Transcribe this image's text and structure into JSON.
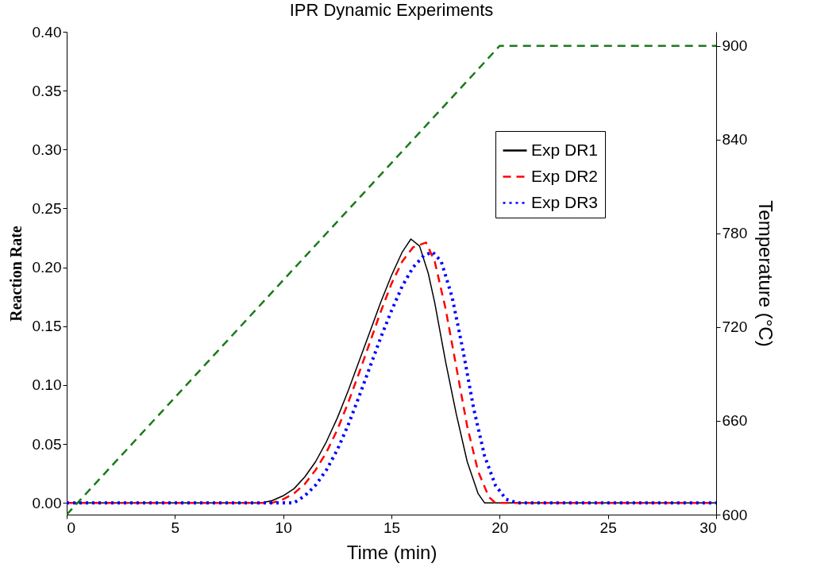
{
  "chart_data": {
    "type": "line",
    "title": "IPR Dynamic Experiments",
    "xlabel": "Time (min)",
    "ylabel": "Reaction Rate",
    "y2label": "Temperature (°C)",
    "xlim": [
      0,
      30
    ],
    "xticks": [
      0,
      5,
      10,
      15,
      20,
      25,
      30
    ],
    "ylim": [
      -0.01,
      0.4
    ],
    "yticks": [
      {
        "value": 0,
        "label": "0.00"
      },
      0.05,
      {
        "value": 0.1,
        "label": "0.10"
      },
      0.15,
      {
        "value": 0.2,
        "label": "0.20"
      },
      0.25,
      {
        "value": 0.3,
        "label": "0.30"
      },
      0.35,
      {
        "value": 0.4,
        "label": "0.40"
      }
    ],
    "y2lim": [
      600,
      909
    ],
    "y2ticks": [
      600,
      660,
      720,
      780,
      840,
      900
    ],
    "grid": false,
    "legend": "top right",
    "series": [
      {
        "name": "Exp DR1",
        "color": "#000000",
        "line_style": "solid",
        "x": [
          0,
          9,
          9.5,
          10,
          10.5,
          11,
          11.5,
          12,
          12.5,
          13,
          13.5,
          14,
          14.5,
          15,
          15.5,
          15.9,
          16.3,
          16.7,
          17,
          17.5,
          18,
          18.5,
          19,
          19.3,
          30
        ],
        "values": [
          0,
          0,
          0.002,
          0.006,
          0.012,
          0.022,
          0.035,
          0.052,
          0.072,
          0.095,
          0.12,
          0.145,
          0.17,
          0.193,
          0.213,
          0.224,
          0.218,
          0.195,
          0.17,
          0.12,
          0.075,
          0.035,
          0.008,
          0,
          0
        ]
      },
      {
        "name": "Exp DR2",
        "color": "#ff0000",
        "line_style": "dashed",
        "x": [
          0,
          9.5,
          10,
          10.5,
          11,
          11.5,
          12,
          12.5,
          13,
          13.5,
          14,
          14.5,
          15,
          15.5,
          16,
          16.6,
          17,
          17.5,
          18,
          18.5,
          19,
          19.5,
          19.8,
          30
        ],
        "values": [
          0,
          0,
          0.003,
          0.008,
          0.016,
          0.028,
          0.043,
          0.062,
          0.085,
          0.11,
          0.136,
          0.162,
          0.186,
          0.205,
          0.217,
          0.221,
          0.205,
          0.165,
          0.115,
          0.065,
          0.027,
          0.005,
          0,
          0
        ]
      },
      {
        "name": "Exp DR3",
        "color": "#0000ff",
        "line_style": "dotted",
        "x": [
          0,
          10.5,
          11,
          11.5,
          12,
          12.5,
          13,
          13.5,
          14,
          14.5,
          15,
          15.5,
          16,
          16.5,
          16.9,
          17.3,
          17.8,
          18.3,
          18.8,
          19.3,
          19.8,
          20.3,
          20.8,
          30
        ],
        "values": [
          0,
          0,
          0.006,
          0.015,
          0.028,
          0.045,
          0.066,
          0.09,
          0.115,
          0.14,
          0.163,
          0.184,
          0.2,
          0.21,
          0.213,
          0.205,
          0.175,
          0.13,
          0.08,
          0.04,
          0.015,
          0.003,
          0,
          0
        ]
      },
      {
        "color": "#1a7a1a",
        "line_style": "dashed",
        "axis": "y2",
        "x": [
          0,
          20,
          30
        ],
        "values": [
          600,
          900,
          900
        ]
      }
    ]
  }
}
